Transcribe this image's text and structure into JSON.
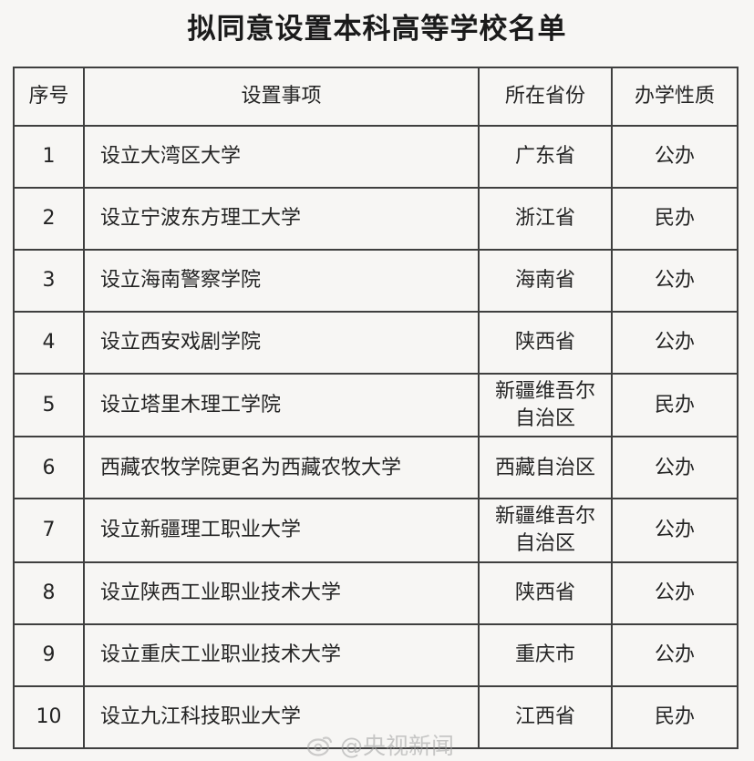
{
  "page": {
    "title": "拟同意设置本科高等学校名单",
    "watermark": "@央视新闻"
  },
  "table": {
    "headers": [
      "序号",
      "设置事项",
      "所在省份",
      "办学性质"
    ],
    "rows": [
      {
        "no": "1",
        "item": "设立大湾区大学",
        "province": "广东省",
        "nature": "公办"
      },
      {
        "no": "2",
        "item": "设立宁波东方理工大学",
        "province": "浙江省",
        "nature": "民办"
      },
      {
        "no": "3",
        "item": "设立海南警察学院",
        "province": "海南省",
        "nature": "公办"
      },
      {
        "no": "4",
        "item": "设立西安戏剧学院",
        "province": "陕西省",
        "nature": "公办"
      },
      {
        "no": "5",
        "item": "设立塔里木理工学院",
        "province": "新疆维吾尔自治区",
        "nature": "民办"
      },
      {
        "no": "6",
        "item": "西藏农牧学院更名为西藏农牧大学",
        "province": "西藏自治区",
        "nature": "公办"
      },
      {
        "no": "7",
        "item": "设立新疆理工职业大学",
        "province": "新疆维吾尔自治区",
        "nature": "公办"
      },
      {
        "no": "8",
        "item": "设立陕西工业职业技术大学",
        "province": "陕西省",
        "nature": "公办"
      },
      {
        "no": "9",
        "item": "设立重庆工业职业技术大学",
        "province": "重庆市",
        "nature": "公办"
      },
      {
        "no": "10",
        "item": "设立九江科技职业大学",
        "province": "江西省",
        "nature": "民办"
      }
    ]
  }
}
